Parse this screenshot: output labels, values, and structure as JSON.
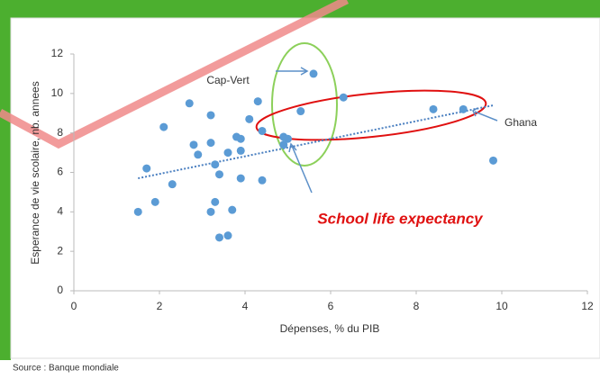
{
  "chart_data": {
    "type": "scatter",
    "x_label": "Dépenses, % du PIB",
    "y_label": "Esperance de vie scolaire, nb. annees",
    "source": "Source : Banque mondiale",
    "annotations": [
      "Cap-Vert",
      "Ghana",
      "School life expectancy"
    ],
    "color": "#5b9bd5",
    "x": [
      1.5,
      1.7,
      1.9,
      2.1,
      2.3,
      2.7,
      2.8,
      2.9,
      3.2,
      3.2,
      3.2,
      3.3,
      3.3,
      3.4,
      3.4,
      3.6,
      3.6,
      3.7,
      3.8,
      3.9,
      3.9,
      3.9,
      4.1,
      4.3,
      4.4,
      4.4,
      4.9,
      5.0,
      4.9,
      5.3,
      5.6,
      6.3,
      8.4,
      9.1,
      9.8
    ],
    "y": [
      4.0,
      6.2,
      4.5,
      8.3,
      5.4,
      9.5,
      7.4,
      6.9,
      8.9,
      7.5,
      4.0,
      6.4,
      4.5,
      5.9,
      2.7,
      7.0,
      2.8,
      4.1,
      7.8,
      7.7,
      5.7,
      7.1,
      8.7,
      9.6,
      5.6,
      8.1,
      7.8,
      7.7,
      7.4,
      9.1,
      11.0,
      9.8,
      9.2,
      9.2,
      6.6
    ],
    "trendline": {
      "x": [
        1.5,
        9.8
      ],
      "y": [
        5.7,
        9.4
      ]
    },
    "xlim": [
      0,
      12
    ],
    "xticks": [
      0,
      2,
      4,
      6,
      8,
      10,
      12
    ],
    "ylim": [
      0,
      12
    ],
    "yticks": [
      0,
      2,
      4,
      6,
      8,
      10,
      12
    ]
  }
}
